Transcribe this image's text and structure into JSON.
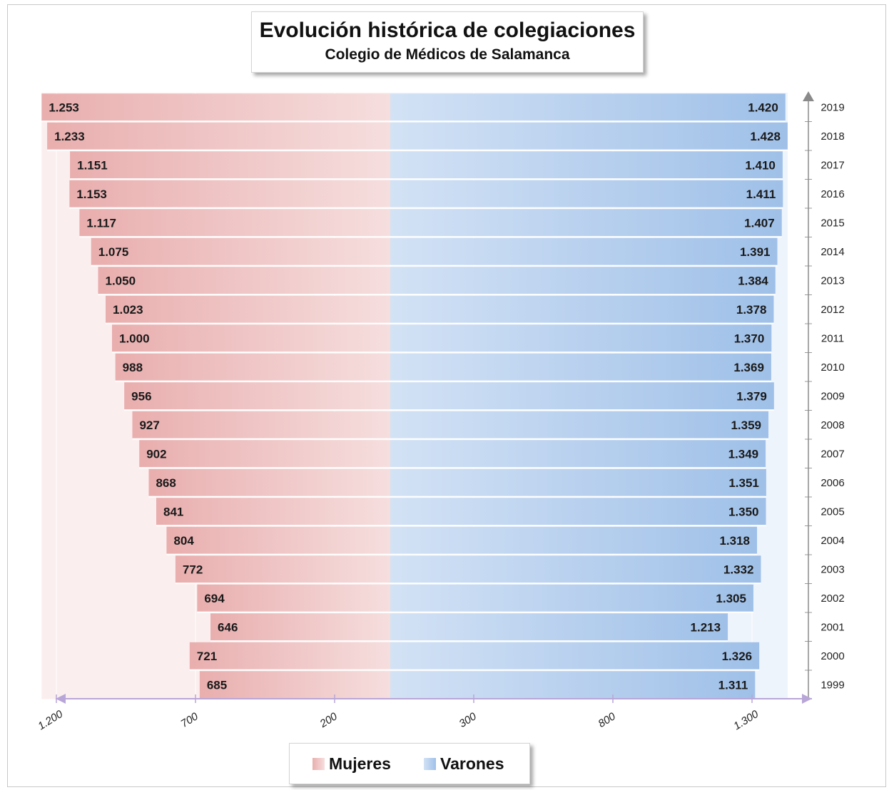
{
  "title": "Evolución histórica de colegiaciones",
  "subtitle": "Colegio de Médicos de Salamanca",
  "legend": [
    {
      "label": "Mujeres",
      "color": "#e9aeae"
    },
    {
      "label": "Varones",
      "color": "#a9c6ea"
    }
  ],
  "chart_data": {
    "type": "bar",
    "orientation": "horizontal-pyramid",
    "title": "Evolución histórica de colegiaciones",
    "subtitle": "Colegio de Médicos de Salamanca",
    "categories": [
      "2019",
      "2018",
      "2017",
      "2016",
      "2015",
      "2014",
      "2013",
      "2012",
      "2011",
      "2010",
      "2009",
      "2008",
      "2007",
      "2006",
      "2005",
      "2004",
      "2003",
      "2002",
      "2001",
      "2000",
      "1999"
    ],
    "series": [
      {
        "name": "Mujeres",
        "color": "#e9aeae",
        "values": [
          1253,
          1233,
          1151,
          1153,
          1117,
          1075,
          1050,
          1023,
          1000,
          988,
          956,
          927,
          902,
          868,
          841,
          804,
          772,
          694,
          646,
          721,
          685
        ],
        "labels": [
          "1.253",
          "1.233",
          "1.151",
          "1.153",
          "1.117",
          "1.075",
          "1.050",
          "1.023",
          "1.000",
          "988",
          "956",
          "927",
          "902",
          "868",
          "841",
          "804",
          "772",
          "694",
          "646",
          "721",
          "685"
        ]
      },
      {
        "name": "Varones",
        "color": "#a9c6ea",
        "values": [
          1420,
          1428,
          1410,
          1411,
          1407,
          1391,
          1384,
          1378,
          1370,
          1369,
          1379,
          1359,
          1349,
          1351,
          1350,
          1318,
          1332,
          1305,
          1213,
          1326,
          1311
        ],
        "labels": [
          "1.420",
          "1.428",
          "1.410",
          "1.411",
          "1.407",
          "1.391",
          "1.384",
          "1.378",
          "1.370",
          "1.369",
          "1.379",
          "1.359",
          "1.349",
          "1.351",
          "1.350",
          "1.318",
          "1.332",
          "1.305",
          "1.213",
          "1.326",
          "1.311"
        ]
      }
    ],
    "x_ticks": [
      "1.200",
      "700",
      "200",
      "300",
      "800",
      "1.300"
    ],
    "grid": true,
    "legend_position": "bottom-center"
  }
}
